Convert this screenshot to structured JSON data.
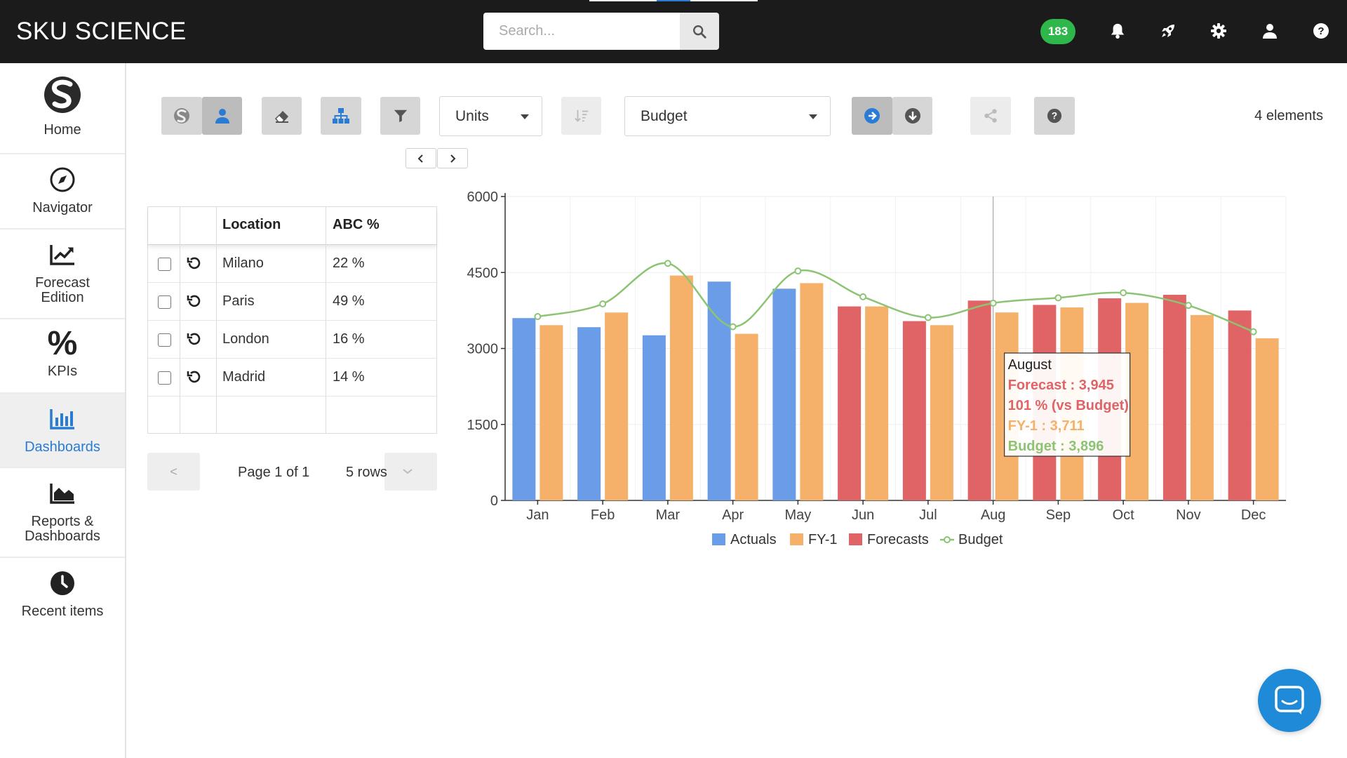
{
  "app": {
    "title": "SKU SCIENCE"
  },
  "search": {
    "placeholder": "Search..."
  },
  "header": {
    "notification_count": "183"
  },
  "sidebar": {
    "items": [
      {
        "label": "Home"
      },
      {
        "label": "Navigator"
      },
      {
        "label": "Forecast Edition"
      },
      {
        "label": "KPIs"
      },
      {
        "label": "Dashboards"
      },
      {
        "label": "Reports & Dashboards"
      },
      {
        "label": "Recent items"
      }
    ],
    "active": "Dashboards"
  },
  "toolbar": {
    "measure_select": "Units",
    "compare_select": "Budget",
    "elements_count": "4 elements"
  },
  "table": {
    "columns": [
      "Location",
      "ABC %"
    ],
    "rows": [
      {
        "location": "Milano",
        "abc": "22 %"
      },
      {
        "location": "Paris",
        "abc": "49 %"
      },
      {
        "location": "London",
        "abc": "16 %"
      },
      {
        "location": "Madrid",
        "abc": "14 %"
      }
    ],
    "pager": {
      "prev": "<",
      "page_text": "Page 1 of 1",
      "rows_text": "5 rows"
    }
  },
  "colors": {
    "actuals": "#6b9ce8",
    "fy1": "#f5b16a",
    "forecasts": "#e06366",
    "budget": "#8cc474",
    "accent": "#2a7bd4",
    "badge": "#2eb84c"
  },
  "chart_data": {
    "type": "bar",
    "categories": [
      "Jan",
      "Feb",
      "Mar",
      "Apr",
      "May",
      "Jun",
      "Jul",
      "Aug",
      "Sep",
      "Oct",
      "Nov",
      "Dec"
    ],
    "series": [
      {
        "name": "Actuals",
        "kind": "bar",
        "values": [
          3600,
          3420,
          3260,
          4320,
          4180,
          null,
          null,
          null,
          null,
          null,
          null,
          null
        ]
      },
      {
        "name": "Forecasts",
        "kind": "bar",
        "values": [
          null,
          null,
          null,
          null,
          null,
          3830,
          3540,
          3945,
          3860,
          3990,
          4060,
          3750
        ]
      },
      {
        "name": "FY-1",
        "kind": "bar",
        "values": [
          3460,
          3710,
          4440,
          3290,
          4290,
          3830,
          3460,
          3711,
          3810,
          3900,
          3660,
          3200
        ]
      },
      {
        "name": "Budget",
        "kind": "line",
        "values": [
          3630,
          3880,
          4680,
          3430,
          4530,
          4020,
          3610,
          3896,
          4000,
          4100,
          3850,
          3330
        ]
      }
    ],
    "ylim": [
      0,
      6000
    ],
    "yticks": [
      "6000",
      "4500",
      "3000",
      "1500",
      "0"
    ],
    "legend": [
      "Actuals",
      "FY-1",
      "Forecasts",
      "Budget"
    ],
    "legend_position": "bottom",
    "grid": true,
    "tooltip": {
      "title": "August",
      "lines": [
        "Forecast : 3,945",
        "101 % (vs Budget)",
        "FY-1 : 3,711",
        "Budget : 3,896"
      ]
    }
  }
}
